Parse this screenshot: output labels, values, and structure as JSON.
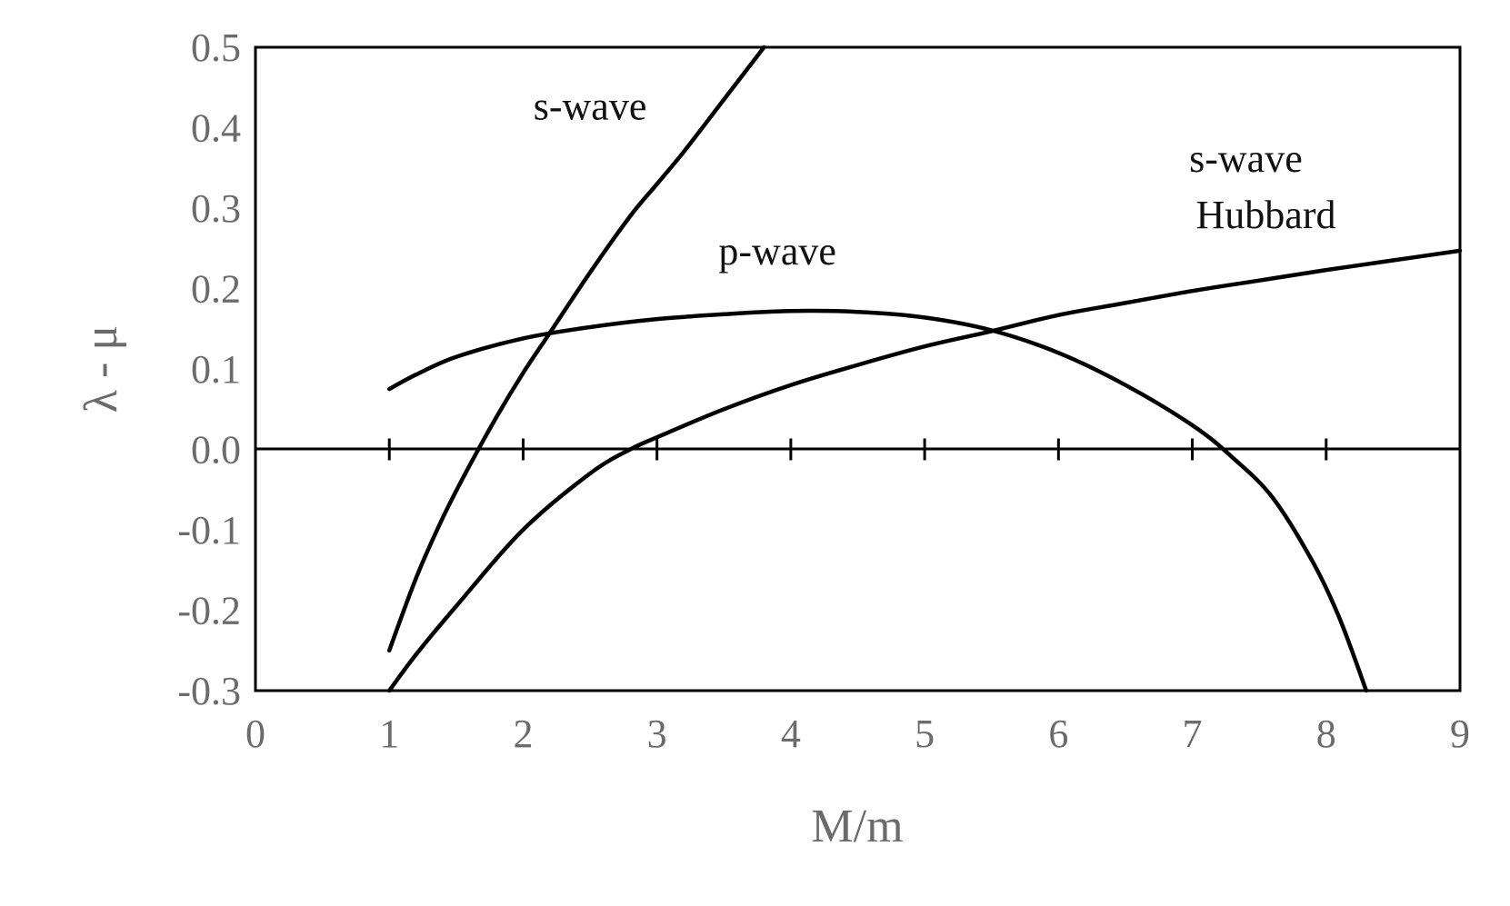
{
  "chart_data": {
    "type": "line",
    "title": "",
    "xlabel": "M/m",
    "ylabel": "λ - μ",
    "xlim": [
      0,
      9
    ],
    "ylim": [
      -0.3,
      0.5
    ],
    "x_ticks": [
      "0",
      "1",
      "2",
      "3",
      "4",
      "5",
      "6",
      "7",
      "8",
      "9"
    ],
    "y_ticks": [
      "0.5",
      "0.4",
      "0.3",
      "0.2",
      "0.1",
      "0.0",
      "-0.1",
      "-0.2",
      "-0.3"
    ],
    "grid": false,
    "legend": "none",
    "series": [
      {
        "name": "s-wave",
        "x": [
          1.0,
          1.2,
          1.4,
          1.6,
          1.8,
          2.0,
          2.2,
          2.5,
          2.8,
          3.0,
          3.2,
          3.5,
          3.8
        ],
        "y": [
          -0.25,
          -0.16,
          -0.085,
          -0.02,
          0.04,
          0.095,
          0.145,
          0.22,
          0.29,
          0.33,
          0.37,
          0.435,
          0.5
        ]
      },
      {
        "name": "p-wave",
        "x": [
          1.0,
          1.2,
          1.5,
          2.0,
          2.5,
          3.0,
          3.5,
          4.0,
          4.5,
          5.0,
          5.5,
          6.0,
          6.5,
          7.0,
          7.3,
          7.6,
          7.9,
          8.1,
          8.3
        ],
        "y": [
          0.075,
          0.093,
          0.115,
          0.138,
          0.152,
          0.162,
          0.168,
          0.172,
          0.171,
          0.164,
          0.148,
          0.12,
          0.08,
          0.03,
          -0.01,
          -0.06,
          -0.14,
          -0.21,
          -0.3
        ]
      },
      {
        "name": "s-wave Hubbard",
        "x": [
          1.0,
          1.2,
          1.5,
          2.0,
          2.5,
          2.8,
          3.0,
          3.5,
          4.0,
          4.5,
          5.0,
          5.5,
          6.0,
          6.5,
          7.0,
          7.5,
          8.0,
          8.5,
          9.0
        ],
        "y": [
          -0.3,
          -0.255,
          -0.195,
          -0.1,
          -0.03,
          0.0,
          0.015,
          0.05,
          0.08,
          0.105,
          0.128,
          0.147,
          0.167,
          0.182,
          0.197,
          0.21,
          0.223,
          0.235,
          0.247
        ]
      }
    ],
    "annotations": [
      {
        "text": "s-wave",
        "x": 2.5,
        "y": 0.41
      },
      {
        "text": "p-wave",
        "x": 3.9,
        "y": 0.23
      },
      {
        "text": "s-wave",
        "x": 7.4,
        "y": 0.345
      },
      {
        "text": "Hubbard",
        "x": 7.55,
        "y": 0.275
      }
    ]
  }
}
